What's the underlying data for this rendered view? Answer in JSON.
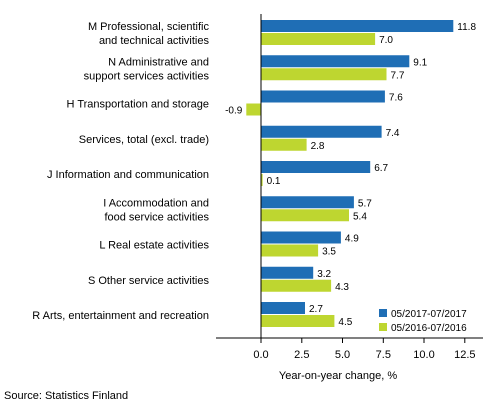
{
  "chart_data": {
    "type": "bar",
    "orientation": "horizontal",
    "categories": [
      [
        "M Professional, scientific",
        "and technical activities"
      ],
      [
        "N Administrative and",
        "support services activities"
      ],
      [
        "H Transportation and storage"
      ],
      [
        "Services, total (excl. trade)"
      ],
      [
        "J Information and communication"
      ],
      [
        "I Accommodation and",
        "food service activities"
      ],
      [
        "L Real estate activities"
      ],
      [
        "S Other service activities"
      ],
      [
        "R Arts, entertainment and recreation"
      ]
    ],
    "series": [
      {
        "name": "05/2017-07/2017",
        "color": "#1f6eb5",
        "values": [
          11.8,
          9.1,
          7.6,
          7.4,
          6.7,
          5.7,
          4.9,
          3.2,
          2.7
        ],
        "labels": [
          "11.8",
          "9.1",
          "7.6",
          "7.4",
          "6.7",
          "5.7",
          "4.9",
          "3.2",
          "2.7"
        ]
      },
      {
        "name": "05/2016-07/2016",
        "color": "#bed630",
        "values": [
          7.0,
          7.7,
          -0.9,
          2.8,
          0.1,
          5.4,
          3.5,
          4.3,
          4.5
        ],
        "labels": [
          "7.0",
          "7.7",
          "-0.9",
          "2.8",
          "0.1",
          "5.4",
          "3.5",
          "4.3",
          "4.5"
        ]
      }
    ],
    "xlabel": "Year-on-year change, %",
    "xlim": [
      -2.5,
      13.75
    ],
    "xticks": [
      0.0,
      2.5,
      5.0,
      7.5,
      10.0,
      12.5
    ],
    "xtick_labels": [
      "0.0",
      "2.5",
      "5.0",
      "7.5",
      "10.0",
      "12.5"
    ],
    "legend_position": "bottom-right",
    "grid": false
  },
  "source": "Source: Statistics Finland"
}
